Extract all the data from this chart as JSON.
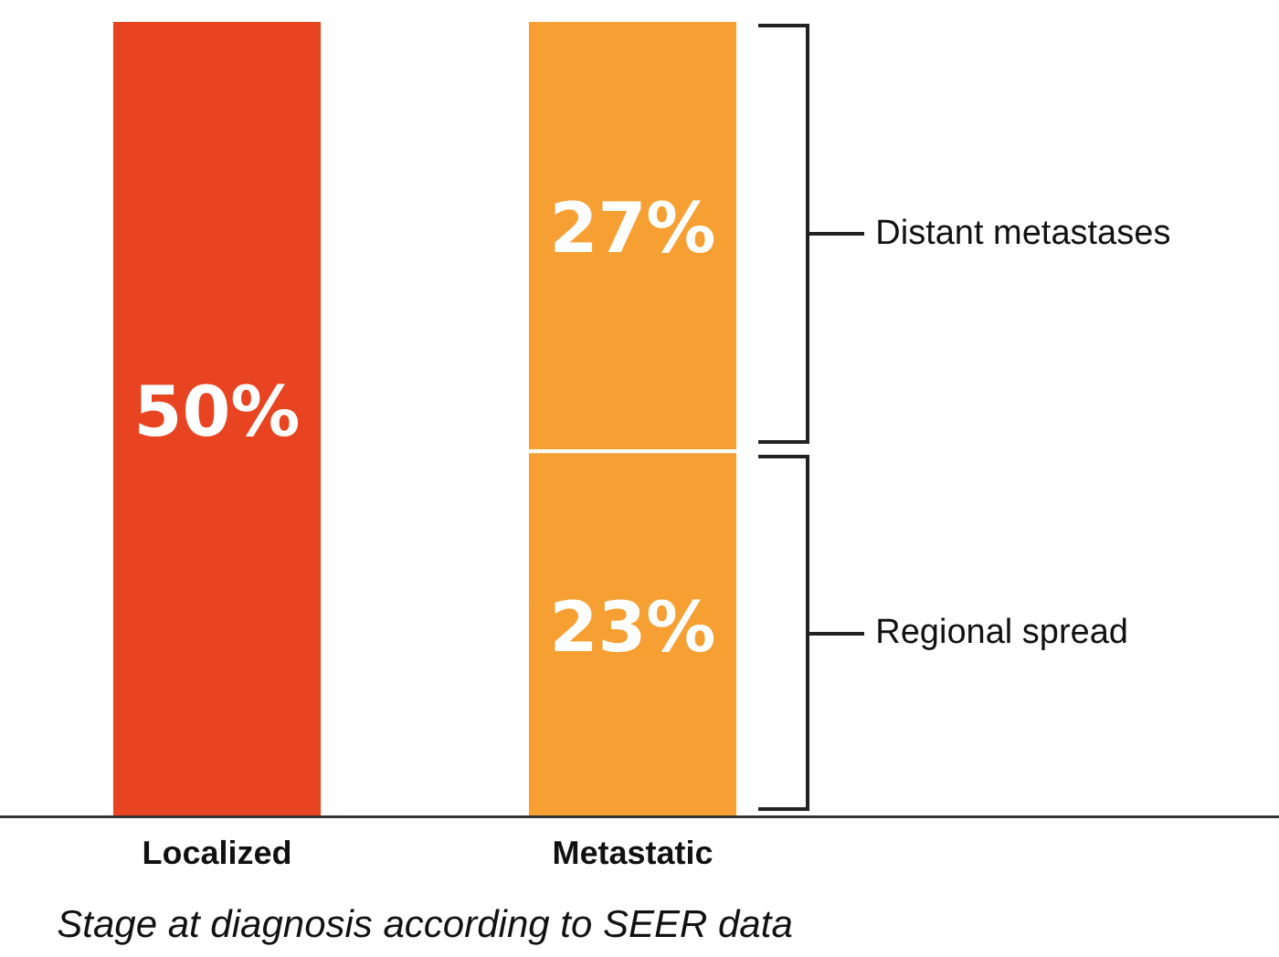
{
  "chart_data": {
    "type": "bar",
    "stacked": true,
    "xlabel": "Stage at diagnosis according to SEER data",
    "categories": [
      "Localized",
      "Metastatic"
    ],
    "grid": false,
    "legend": false,
    "series": [
      {
        "color": "#e84422",
        "values": [
          50,
          null
        ],
        "value_labels": [
          "50%",
          null
        ]
      },
      {
        "name": "Regional spread",
        "color": "#f6a033",
        "values": [
          null,
          23
        ],
        "value_labels": [
          null,
          "23%"
        ]
      },
      {
        "name": "Distant metastases",
        "color": "#f6a033",
        "values": [
          null,
          27
        ],
        "value_labels": [
          null,
          "27%"
        ]
      }
    ]
  }
}
